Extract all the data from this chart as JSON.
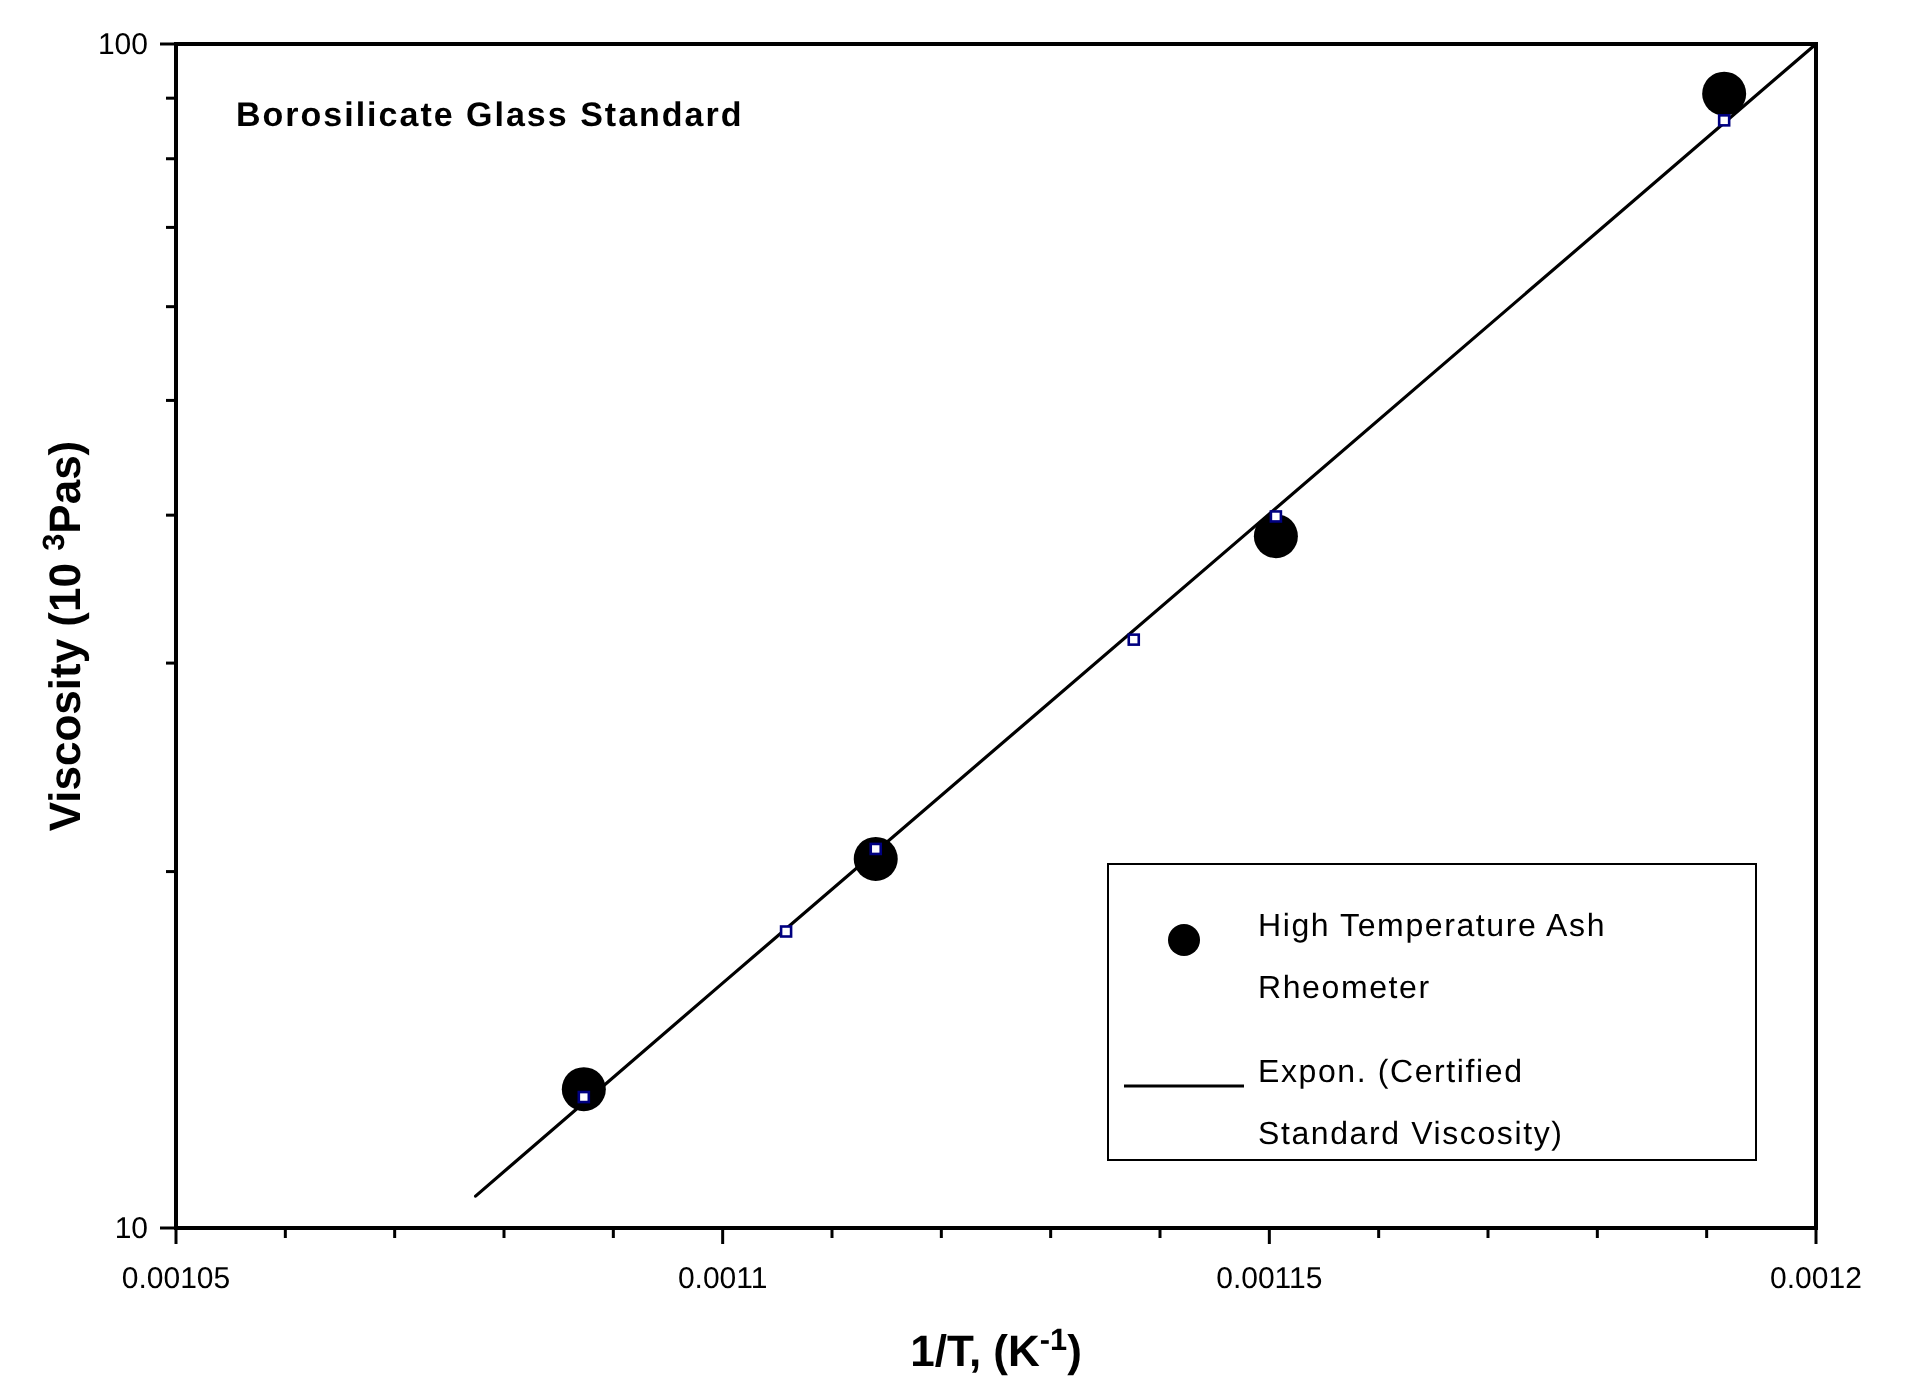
{
  "chart_data": {
    "type": "scatter",
    "title": "Borosilicate Glass Standard",
    "xlabel": "1/T, (K$^{-1}$)",
    "ylabel": "Viscosity (10 $^{3}$Pas)",
    "xlim": [
      0.00105,
      0.0012
    ],
    "ylim": [
      10,
      100
    ],
    "log": "y",
    "grid": false,
    "legend": "bottom right",
    "xticks": [
      0.00105,
      {
        "value": 0.00106,
        "label": null
      },
      {
        "value": 0.00107,
        "label": null
      },
      {
        "value": 0.00108,
        "label": null
      },
      {
        "value": 0.00109,
        "label": null
      },
      0.0011,
      {
        "value": 0.00111,
        "label": null
      },
      {
        "value": 0.00112,
        "label": null
      },
      {
        "value": 0.00113,
        "label": null
      },
      {
        "value": 0.00114,
        "label": null
      },
      0.00115,
      {
        "value": 0.00116,
        "label": null
      },
      {
        "value": 0.00117,
        "label": null
      },
      {
        "value": 0.00118,
        "label": null
      },
      {
        "value": 0.00119,
        "label": null
      },
      0.0012
    ],
    "yticks": [
      10,
      {
        "value": 20,
        "label": null
      },
      {
        "value": 30,
        "label": null
      },
      {
        "value": 40,
        "label": null
      },
      {
        "value": 50,
        "label": null
      },
      {
        "value": 60,
        "label": null
      },
      {
        "value": 70,
        "label": null
      },
      {
        "value": 80,
        "label": null
      },
      {
        "value": 90,
        "label": null
      },
      100
    ],
    "series": [
      {
        "name": "High Temperature Ash Rheometer",
        "color": "#000000",
        "marker": "circle",
        "x": [
          0.0010873,
          0.001114,
          0.0011506,
          0.0011916
        ],
        "values": [
          13.1,
          20.5,
          38.4,
          90.8
        ]
      },
      {
        "type": "line",
        "name": "Expon. (Certified Standard Viscosity)",
        "color": "#000000",
        "marker": "none",
        "line_style": "solid",
        "x": [
          0.0010774,
          0.0011,
          0.00115,
          0.0012
        ],
        "values": [
          10.64,
          16.1,
          40.1,
          100
        ]
      },
      {
        "color": "#000080",
        "marker": "square",
        "x": [
          0.0010873,
          0.0011058,
          0.001114,
          0.0011376,
          0.0011506,
          0.0011916
        ],
        "values": [
          12.9,
          17.8,
          20.9,
          31.4,
          39.9,
          86.2
        ]
      }
    ]
  }
}
